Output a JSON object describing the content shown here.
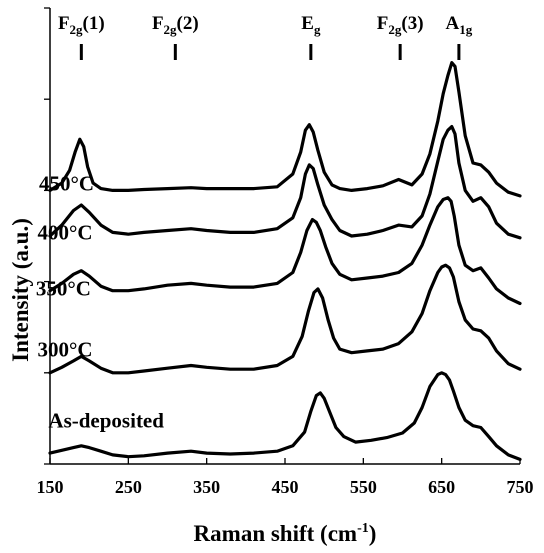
{
  "chart_data": {
    "type": "line",
    "title": "",
    "xlabel": "Raman shift (cm",
    "xlabel_sup": "-1",
    "xlabel_close": ")",
    "ylabel": "Intensity (a.u.)",
    "xlim": [
      150,
      750
    ],
    "ylim": [
      0,
      500
    ],
    "xticks": [
      {
        "value": 150,
        "label": "150"
      },
      {
        "value": 250,
        "label": "250"
      },
      {
        "value": 350,
        "label": "350"
      },
      {
        "value": 450,
        "label": "450"
      },
      {
        "value": 550,
        "label": "550"
      },
      {
        "value": 650,
        "label": "650"
      },
      {
        "value": 750,
        "label": "750"
      }
    ],
    "yticks": [
      0,
      100,
      200,
      300,
      400,
      500
    ],
    "grid": false,
    "legend": "none",
    "line_color": "#000000",
    "peak_markers": [
      {
        "base": "F",
        "sub": "2g",
        "suffix": "(1)",
        "x": 190
      },
      {
        "base": "F",
        "sub": "2g",
        "suffix": "(2)",
        "x": 310
      },
      {
        "base": "E",
        "sub": "g",
        "suffix": "",
        "x": 483
      },
      {
        "base": "F",
        "sub": "2g",
        "suffix": "(3)",
        "x": 597
      },
      {
        "base": "A",
        "sub": "1g",
        "suffix": "",
        "x": 672
      }
    ],
    "series": [
      {
        "name": "As-deposited",
        "label_pos": [
          148,
          40
        ],
        "x": [
          150,
          165,
          180,
          190,
          200,
          215,
          230,
          250,
          270,
          300,
          330,
          350,
          380,
          410,
          440,
          460,
          475,
          483,
          490,
          495,
          500,
          508,
          515,
          525,
          540,
          560,
          580,
          600,
          615,
          625,
          635,
          645,
          650,
          655,
          660,
          665,
          672,
          680,
          690,
          700,
          710,
          720,
          735,
          750
        ],
        "y": [
          12,
          15,
          18,
          20,
          18,
          14,
          10,
          8,
          9,
          12,
          14,
          12,
          11,
          12,
          14,
          20,
          35,
          58,
          75,
          78,
          72,
          55,
          40,
          30,
          24,
          26,
          29,
          34,
          45,
          62,
          85,
          98,
          100,
          98,
          92,
          80,
          62,
          48,
          42,
          40,
          30,
          20,
          10,
          5
        ]
      },
      {
        "name": "300°C",
        "label_pos": [
          134,
          118
        ],
        "x": [
          150,
          165,
          180,
          190,
          200,
          215,
          230,
          250,
          270,
          300,
          330,
          350,
          380,
          410,
          440,
          460,
          472,
          480,
          487,
          492,
          498,
          505,
          512,
          520,
          535,
          555,
          575,
          595,
          612,
          625,
          635,
          645,
          650,
          655,
          660,
          665,
          672,
          680,
          690,
          700,
          710,
          720,
          735,
          750
        ],
        "y": [
          100,
          106,
          113,
          118,
          113,
          105,
          100,
          100,
          102,
          105,
          108,
          106,
          104,
          104,
          108,
          118,
          140,
          168,
          188,
          192,
          182,
          158,
          138,
          126,
          122,
          124,
          126,
          132,
          145,
          165,
          190,
          210,
          216,
          218,
          215,
          205,
          178,
          158,
          148,
          146,
          138,
          124,
          110,
          104
        ]
      },
      {
        "name": "350°C",
        "label_pos": [
          132,
          185
        ],
        "x": [
          150,
          165,
          180,
          190,
          200,
          215,
          230,
          250,
          270,
          300,
          330,
          350,
          380,
          410,
          440,
          460,
          470,
          478,
          485,
          490,
          495,
          502,
          510,
          520,
          535,
          555,
          575,
          595,
          612,
          625,
          635,
          645,
          652,
          658,
          662,
          666,
          672,
          680,
          690,
          700,
          710,
          720,
          735,
          750
        ],
        "y": [
          190,
          198,
          208,
          212,
          206,
          195,
          190,
          190,
          192,
          196,
          198,
          196,
          194,
          194,
          198,
          210,
          232,
          256,
          268,
          265,
          256,
          238,
          220,
          208,
          202,
          204,
          206,
          210,
          220,
          240,
          262,
          282,
          290,
          292,
          288,
          272,
          240,
          218,
          212,
          215,
          204,
          192,
          182,
          176
        ]
      },
      {
        "name": "400°C",
        "label_pos": [
          134,
          246
        ],
        "x": [
          150,
          165,
          180,
          190,
          200,
          215,
          230,
          250,
          270,
          300,
          330,
          350,
          380,
          410,
          440,
          460,
          470,
          476,
          481,
          486,
          492,
          500,
          510,
          520,
          535,
          555,
          575,
          595,
          612,
          625,
          635,
          645,
          652,
          658,
          663,
          667,
          672,
          680,
          690,
          700,
          710,
          720,
          735,
          750
        ],
        "y": [
          250,
          262,
          278,
          284,
          276,
          262,
          254,
          252,
          254,
          256,
          258,
          256,
          254,
          254,
          258,
          270,
          292,
          318,
          328,
          324,
          306,
          284,
          268,
          256,
          250,
          252,
          256,
          262,
          260,
          272,
          296,
          332,
          356,
          366,
          370,
          362,
          330,
          300,
          288,
          292,
          282,
          264,
          252,
          248
        ]
      },
      {
        "name": "450°C",
        "label_pos": [
          136,
          300
        ],
        "x": [
          150,
          165,
          175,
          182,
          188,
          193,
          198,
          205,
          215,
          230,
          250,
          270,
          300,
          330,
          350,
          380,
          410,
          440,
          460,
          470,
          476,
          481,
          486,
          492,
          500,
          510,
          520,
          535,
          555,
          575,
          595,
          612,
          625,
          635,
          645,
          652,
          658,
          663,
          667,
          672,
          680,
          690,
          700,
          710,
          720,
          735,
          750
        ],
        "y": [
          300,
          308,
          322,
          342,
          356,
          348,
          326,
          308,
          302,
          300,
          300,
          301,
          302,
          303,
          302,
          302,
          302,
          304,
          318,
          342,
          366,
          372,
          364,
          344,
          320,
          306,
          302,
          300,
          302,
          305,
          312,
          306,
          318,
          340,
          376,
          406,
          426,
          440,
          436,
          408,
          360,
          330,
          328,
          320,
          308,
          298,
          294
        ]
      }
    ]
  }
}
